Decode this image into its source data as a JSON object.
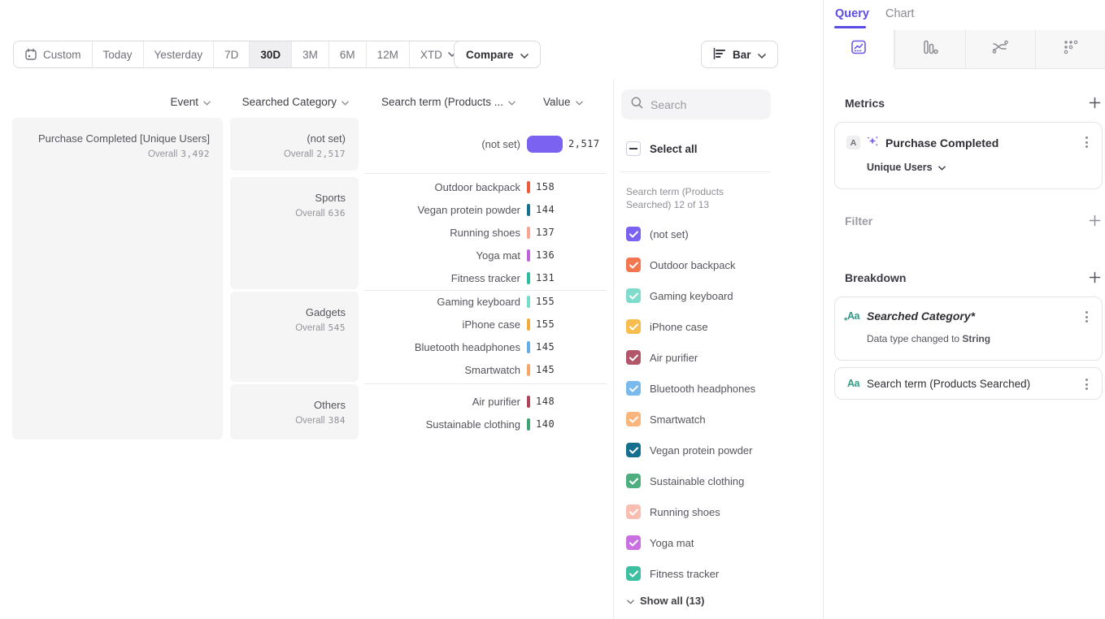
{
  "toolbar": {
    "date_ranges": [
      {
        "label": "Custom",
        "icon": "calendar",
        "active": false
      },
      {
        "label": "Today",
        "active": false
      },
      {
        "label": "Yesterday",
        "active": false
      },
      {
        "label": "7D",
        "active": false
      },
      {
        "label": "30D",
        "active": true
      },
      {
        "label": "3M",
        "active": false
      },
      {
        "label": "6M",
        "active": false
      },
      {
        "label": "12M",
        "active": false
      },
      {
        "label": "XTD",
        "active": false,
        "chevron": true
      }
    ],
    "compare_label": "Compare",
    "chart_type_label": "Bar"
  },
  "table": {
    "headers": {
      "event": "Event",
      "category": "Searched Category",
      "term": "Search term (Products ...",
      "value": "Value"
    },
    "overall_label": "Overall",
    "event": {
      "name": "Purchase Completed [Unique Users]",
      "overall": "3,492"
    },
    "groups": [
      {
        "category": "(not set)",
        "overall": "2,517",
        "rows": [
          {
            "term": "(not set)",
            "value": "2,517",
            "color": "#7C62F0",
            "big": true
          }
        ]
      },
      {
        "category": "Sports",
        "overall": "636",
        "rows": [
          {
            "term": "Outdoor backpack",
            "value": "158",
            "color": "#F0593C"
          },
          {
            "term": "Vegan protein powder",
            "value": "144",
            "color": "#16708F"
          },
          {
            "term": "Running shoes",
            "value": "137",
            "color": "#F9A58F"
          },
          {
            "term": "Yoga mat",
            "value": "136",
            "color": "#C263DE"
          },
          {
            "term": "Fitness tracker",
            "value": "131",
            "color": "#2EBD9E"
          }
        ]
      },
      {
        "category": "Gadgets",
        "overall": "545",
        "rows": [
          {
            "term": "Gaming keyboard",
            "value": "155",
            "color": "#77DCCB"
          },
          {
            "term": "iPhone case",
            "value": "155",
            "color": "#F2AD3D"
          },
          {
            "term": "Bluetooth headphones",
            "value": "145",
            "color": "#63ADE8"
          },
          {
            "term": "Smartwatch",
            "value": "145",
            "color": "#F7A765"
          }
        ]
      },
      {
        "category": "Others",
        "overall": "384",
        "rows": [
          {
            "term": "Air purifier",
            "value": "148",
            "color": "#B04459"
          },
          {
            "term": "Sustainable clothing",
            "value": "140",
            "color": "#3FA474"
          }
        ]
      }
    ]
  },
  "legend": {
    "search_placeholder": "Search",
    "select_all_label": "Select all",
    "subtitle": "Search term (Products Searched) 12 of 13",
    "items": [
      {
        "label": "(not set)",
        "color": "#7C62F0"
      },
      {
        "label": "Outdoor backpack",
        "color": "#F4764F"
      },
      {
        "label": "Gaming keyboard",
        "color": "#7FDCCC"
      },
      {
        "label": "iPhone case",
        "color": "#F6BE4F"
      },
      {
        "label": "Air purifier",
        "color": "#B25669"
      },
      {
        "label": "Bluetooth headphones",
        "color": "#79BAEE"
      },
      {
        "label": "Smartwatch",
        "color": "#F9B57C"
      },
      {
        "label": "Vegan protein powder",
        "color": "#166F8E"
      },
      {
        "label": "Sustainable clothing",
        "color": "#4FAE80"
      },
      {
        "label": "Running shoes",
        "color": "#F9BDB1"
      },
      {
        "label": "Yoga mat",
        "color": "#CB70E1"
      },
      {
        "label": "Fitness tracker",
        "color": "#3FBFA2"
      }
    ],
    "show_all_label": "Show all (13)"
  },
  "query_panel": {
    "tabs": [
      {
        "label": "Query",
        "active": true
      },
      {
        "label": "Chart",
        "active": false
      }
    ],
    "metrics": {
      "title": "Metrics",
      "card": {
        "badge": "A",
        "event_name": "Purchase Completed",
        "measure": "Unique Users"
      }
    },
    "filter": {
      "title": "Filter"
    },
    "breakdown": {
      "title": "Breakdown",
      "cards": [
        {
          "name": "Searched Category*",
          "note_prefix": "Data type changed to ",
          "note_value": "String"
        },
        {
          "name": "Search term (Products Searched)"
        }
      ]
    }
  },
  "colors": {
    "accent": "#5B4CE6",
    "accent_icon": "#7C62F0",
    "breakdown_icon_teal": "#2E9C87"
  }
}
